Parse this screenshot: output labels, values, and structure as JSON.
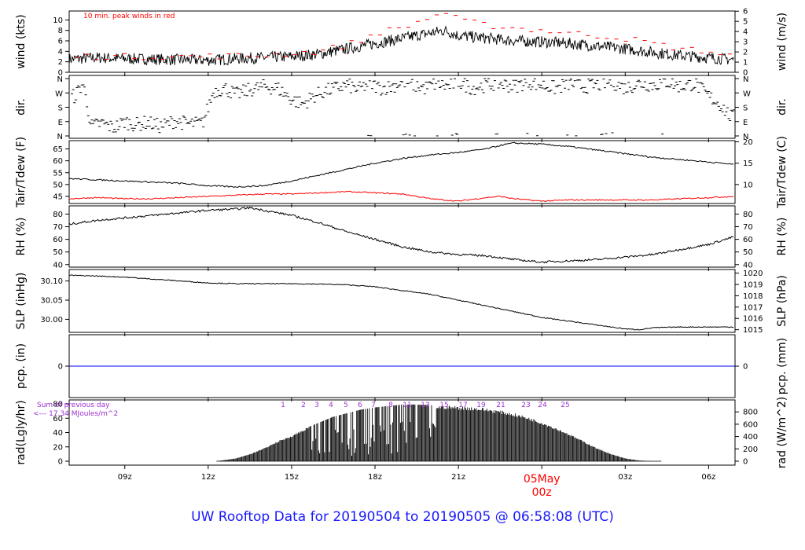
{
  "page_title": "UW Rooftop Data for 20190504  to  20190505 @ 06:58:08  (UTC)",
  "colors": {
    "axis": "#000000",
    "line": "#000000",
    "dewpoint": "#ff0000",
    "gust_marker": "#ff0000",
    "precip_line": "#0000ff",
    "solar_annotation": "#9b30d0",
    "date_label": "#ff0000",
    "title": "#1a1aff"
  },
  "time_axis": {
    "tick_labels": [
      "09z",
      "12z",
      "15z",
      "18z",
      "21z",
      "00z",
      "03z",
      "06z"
    ],
    "tick_hours": [
      9,
      12,
      15,
      18,
      21,
      24,
      27,
      30
    ],
    "range_hours": [
      7.0,
      30.95
    ],
    "date_label": "05May",
    "date_sublabel": "00z"
  },
  "chart_data": [
    {
      "type": "line",
      "panel": "wind",
      "ylabel_left": "wind (kts)",
      "ylabel_right": "wind (m/s)",
      "left_ticks": [
        "0",
        "2",
        "4",
        "6",
        "8",
        "10"
      ],
      "right_ticks": [
        "0",
        "1",
        "2",
        "3",
        "4",
        "5",
        "6"
      ],
      "ylim": [
        0,
        11.7
      ],
      "annotation": "10 min. peak winds in red",
      "series": [
        {
          "name": "10 min. peak winds",
          "x": [
            8.0,
            11.0,
            14.0,
            16.0,
            17.5,
            18.0,
            19.0,
            19.5,
            20.0,
            20.5,
            21.0,
            22.0,
            23.0,
            24.0,
            25.0,
            26.0,
            27.0,
            28.0,
            29.0,
            30.0,
            30.9
          ],
          "y": [
            3.0,
            3.0,
            3.2,
            4.0,
            6.0,
            7.5,
            8.5,
            9.5,
            10.5,
            11.5,
            10.0,
            9.0,
            8.5,
            8.0,
            7.5,
            7.0,
            6.5,
            5.5,
            4.5,
            4.0,
            3.0
          ]
        }
      ],
      "x": [
        7.0,
        8.0,
        9.0,
        10.0,
        11.0,
        12.0,
        13.0,
        14.0,
        15.0,
        16.0,
        17.0,
        18.0,
        19.0,
        19.5,
        20.0,
        20.5,
        21.0,
        22.0,
        23.0,
        24.0,
        25.0,
        26.0,
        27.0,
        28.0,
        29.0,
        30.0,
        30.9
      ],
      "y": [
        2.5,
        2.8,
        2.6,
        2.5,
        2.4,
        2.3,
        2.6,
        2.8,
        3.0,
        3.5,
        4.5,
        5.5,
        6.5,
        7.0,
        7.5,
        8.0,
        7.0,
        6.5,
        6.0,
        5.8,
        5.5,
        5.0,
        4.5,
        3.8,
        3.2,
        2.8,
        2.4
      ]
    },
    {
      "type": "scatter",
      "panel": "direction",
      "ylabel_left": "dir.",
      "ylabel_right": "dir.",
      "tick_labels": [
        "N",
        "E",
        "S",
        "W",
        "N"
      ],
      "ylim": [
        0,
        360
      ],
      "x": [
        7.2,
        7.5,
        7.8,
        8.2,
        8.6,
        9.0,
        9.4,
        9.8,
        10.3,
        10.8,
        11.3,
        11.8,
        12.2,
        12.6,
        13.0,
        13.5,
        14.0,
        14.5,
        15.0,
        15.4,
        15.8,
        16.2,
        16.6,
        17.0,
        17.4,
        17.8,
        18.2,
        18.6,
        19.0,
        19.4,
        19.8,
        20.2,
        20.6,
        21.0,
        21.5,
        22.0,
        22.5,
        23.0,
        23.5,
        24.0,
        24.5,
        25.0,
        25.5,
        26.0,
        26.5,
        27.0,
        27.5,
        28.0,
        28.5,
        29.0,
        29.5,
        30.0,
        30.4,
        30.8
      ],
      "y": [
        250,
        330,
        60,
        80,
        50,
        90,
        70,
        85,
        60,
        95,
        75,
        80,
        280,
        300,
        260,
        290,
        310,
        300,
        230,
        200,
        250,
        280,
        300,
        320,
        290,
        330,
        300,
        310,
        340,
        320,
        300,
        330,
        310,
        340,
        300,
        320,
        330,
        310,
        340,
        320,
        300,
        330,
        310,
        320,
        340,
        300,
        330,
        320,
        340,
        310,
        330,
        250,
        200,
        120
      ]
    },
    {
      "type": "line",
      "panel": "temperature",
      "ylabel_left": "Tair/Tdew (F)",
      "ylabel_right": "Tair/Tdew (C)",
      "left_ticks": [
        "45",
        "50",
        "55",
        "60",
        "65"
      ],
      "right_ticks": [
        "10",
        "15",
        "20"
      ],
      "ylim": [
        42,
        68.5
      ],
      "series": [
        {
          "name": "Tair",
          "x": [
            7.0,
            8.0,
            9.0,
            10.0,
            11.0,
            12.0,
            13.0,
            14.0,
            15.0,
            16.0,
            17.0,
            18.0,
            19.0,
            20.0,
            21.0,
            22.0,
            22.5,
            23.0,
            24.0,
            25.0,
            26.0,
            27.0,
            28.0,
            29.0,
            30.0,
            30.9
          ],
          "y": [
            52.5,
            52.0,
            51.5,
            51.0,
            50.5,
            49.5,
            49.0,
            49.5,
            51.5,
            54.0,
            56.5,
            59.0,
            61.0,
            62.5,
            63.5,
            65.0,
            66.5,
            67.5,
            67.0,
            66.0,
            64.5,
            63.0,
            61.5,
            60.5,
            59.5,
            58.5
          ]
        },
        {
          "name": "Tdew",
          "x": [
            7.0,
            8.0,
            9.0,
            10.0,
            11.0,
            12.0,
            13.0,
            14.0,
            15.0,
            16.0,
            17.0,
            18.0,
            19.0,
            20.0,
            21.0,
            22.0,
            22.5,
            23.0,
            24.0,
            25.0,
            26.0,
            27.0,
            28.0,
            29.0,
            30.0,
            30.9
          ],
          "y": [
            44.0,
            44.5,
            44.0,
            44.0,
            44.5,
            45.0,
            45.5,
            46.0,
            46.0,
            46.5,
            47.0,
            46.5,
            46.0,
            44.0,
            43.0,
            44.5,
            45.0,
            44.0,
            43.0,
            43.5,
            43.5,
            43.5,
            43.5,
            44.0,
            44.5,
            45.0
          ]
        }
      ]
    },
    {
      "type": "line",
      "panel": "humidity",
      "ylabel_left": "RH (%)",
      "ylabel_right": "RH (%)",
      "left_ticks": [
        "40",
        "50",
        "60",
        "70",
        "80"
      ],
      "right_ticks": [
        "40",
        "50",
        "60",
        "70",
        "80"
      ],
      "ylim": [
        38,
        86.5
      ],
      "x": [
        7.0,
        8.0,
        9.0,
        10.0,
        11.0,
        12.0,
        13.0,
        13.5,
        14.0,
        15.0,
        16.0,
        17.0,
        18.0,
        19.0,
        20.0,
        21.0,
        22.0,
        23.0,
        24.0,
        25.0,
        26.0,
        27.0,
        28.0,
        29.0,
        30.0,
        30.9
      ],
      "y": [
        72,
        75,
        77,
        79,
        81,
        83,
        84,
        85,
        83,
        79,
        73,
        66,
        60,
        54,
        50,
        48,
        47,
        44,
        42,
        43,
        44,
        46,
        48,
        52,
        56,
        62
      ]
    },
    {
      "type": "line",
      "panel": "pressure",
      "ylabel_left": "SLP (inHg)",
      "ylabel_right": "SLP (hPa)",
      "left_ticks": [
        "30.00",
        "30.05",
        "30.10"
      ],
      "right_ticks": [
        "1015",
        "1016",
        "1017",
        "1018",
        "1019",
        "1020"
      ],
      "ylim": [
        29.966,
        30.13
      ],
      "x": [
        7.0,
        8.0,
        9.0,
        10.0,
        11.0,
        12.0,
        13.0,
        14.0,
        15.0,
        16.0,
        17.0,
        18.0,
        19.0,
        20.0,
        21.0,
        22.0,
        23.0,
        24.0,
        25.0,
        26.0,
        27.0,
        27.5,
        28.0,
        29.0,
        30.0,
        30.9
      ],
      "y": [
        30.115,
        30.113,
        30.11,
        30.105,
        30.1,
        30.095,
        30.093,
        30.093,
        30.093,
        30.092,
        30.09,
        30.085,
        30.075,
        30.065,
        30.05,
        30.035,
        30.02,
        30.005,
        29.995,
        29.985,
        29.975,
        29.973,
        29.978,
        29.98,
        29.98,
        29.98
      ]
    },
    {
      "type": "line",
      "panel": "precipitation",
      "ylabel_left": "pcp. (in)",
      "ylabel_right": "pcp. (mm)",
      "left_ticks": [
        "0"
      ],
      "right_ticks": [
        "0"
      ],
      "x": [
        7.0,
        30.95
      ],
      "y": [
        0,
        0
      ]
    },
    {
      "type": "area",
      "panel": "radiation",
      "ylabel_left": "rad(Lgly/hr)",
      "ylabel_right": "rad (W/m^2)",
      "left_ticks": [
        "0",
        "20",
        "40",
        "60",
        "80"
      ],
      "right_ticks": [
        "0",
        "200",
        "400",
        "600",
        "800"
      ],
      "ylim": [
        0,
        80
      ],
      "annotation_line1": "Sum of previous day",
      "annotation_line2": "<--- 17.34 MJoules/m^2",
      "hour_marks": [
        "1",
        "2",
        "3",
        "4",
        "5",
        "6",
        "7",
        "8",
        "11",
        "13",
        "15",
        "17",
        "19",
        "21",
        "23",
        "24",
        "25"
      ],
      "x": [
        12.3,
        13.0,
        13.5,
        14.0,
        14.5,
        15.0,
        15.5,
        16.0,
        16.5,
        17.0,
        17.5,
        18.0,
        18.5,
        19.0,
        19.5,
        20.0,
        20.5,
        21.0,
        21.5,
        22.0,
        22.5,
        23.0,
        23.5,
        24.0,
        24.5,
        25.0,
        25.5,
        26.0,
        26.5,
        27.0,
        27.5,
        28.0
      ],
      "y": [
        0,
        4,
        10,
        18,
        28,
        36,
        46,
        54,
        62,
        67,
        72,
        75,
        77,
        79,
        79,
        78,
        78,
        77,
        76,
        74,
        71,
        67,
        62,
        55,
        47,
        38,
        28,
        18,
        10,
        4,
        1,
        0
      ]
    }
  ]
}
